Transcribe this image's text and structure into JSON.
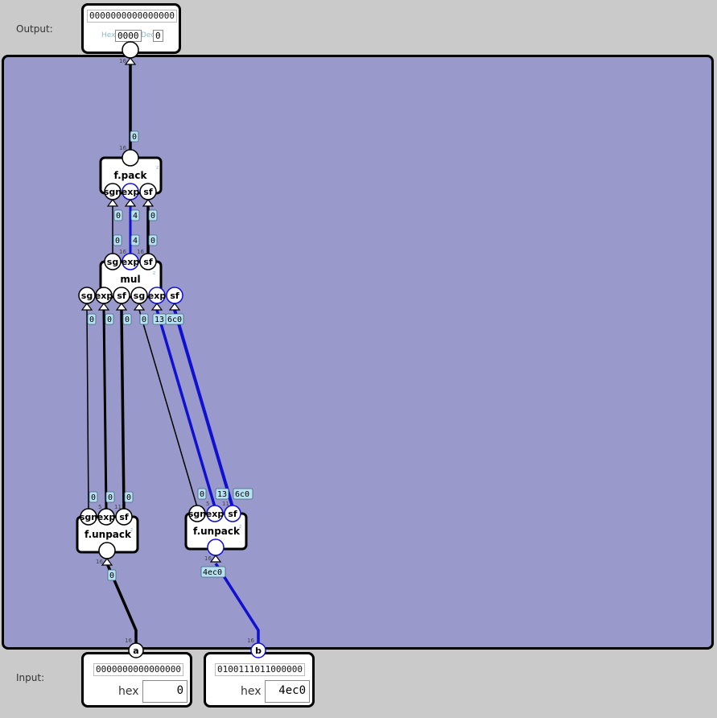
{
  "output": {
    "label": "Output:",
    "bits": "0000000000000000",
    "hex_label": "Hex",
    "hex_value": "0000",
    "dec_label": "Dec",
    "dec_value": "0"
  },
  "input": {
    "label": "Input:",
    "a": {
      "pin": "a",
      "bits": "0000000000000000",
      "field_label": "hex",
      "value": "0"
    },
    "b": {
      "pin": "b",
      "bits": "0100111011000000",
      "field_label": "hex",
      "value": "4ec0"
    }
  },
  "components": {
    "pack": {
      "title": "f.pack",
      "ports": [
        "sgn",
        "exp",
        "sf"
      ]
    },
    "mul": {
      "title": "mul",
      "out_ports": [
        "sg",
        "exp",
        "sf"
      ],
      "in_ports": [
        "sg",
        "exp",
        "sf",
        "sg",
        "exp",
        "sf"
      ]
    },
    "unpack_a": {
      "title": "f.unpack",
      "ports": [
        "sgn",
        "exp",
        "sf"
      ]
    },
    "unpack_b": {
      "title": "f.unpack",
      "ports": [
        "sgn",
        "exp",
        "sf"
      ]
    }
  },
  "wire_values": {
    "out": "0",
    "pack_sgn": "0",
    "pack_exp": "4",
    "pack_sf": "0",
    "mul_sg": "0",
    "mul_exp": "4",
    "mul_sf": "0",
    "mul_in_a_sg": "0",
    "mul_in_a_exp": "0",
    "mul_in_a_sf": "0",
    "mul_in_b_sg": "0",
    "mul_in_b_exp": "13",
    "mul_in_b_sf": "6c0",
    "ua_sgn": "0",
    "ua_exp": "0",
    "ua_sf": "0",
    "ub_sgn": "0",
    "ub_exp": "13",
    "ub_sf": "6c0",
    "a_in": "0",
    "b_in": "4ec0"
  },
  "widths": {
    "w16": "16",
    "w5": "5",
    "w11": "11"
  },
  "colors": {
    "canvas": "#9999cc",
    "wire_zero": "#000000",
    "wire_one": "#1010d0",
    "tag_bg": "#b8e0f0"
  }
}
